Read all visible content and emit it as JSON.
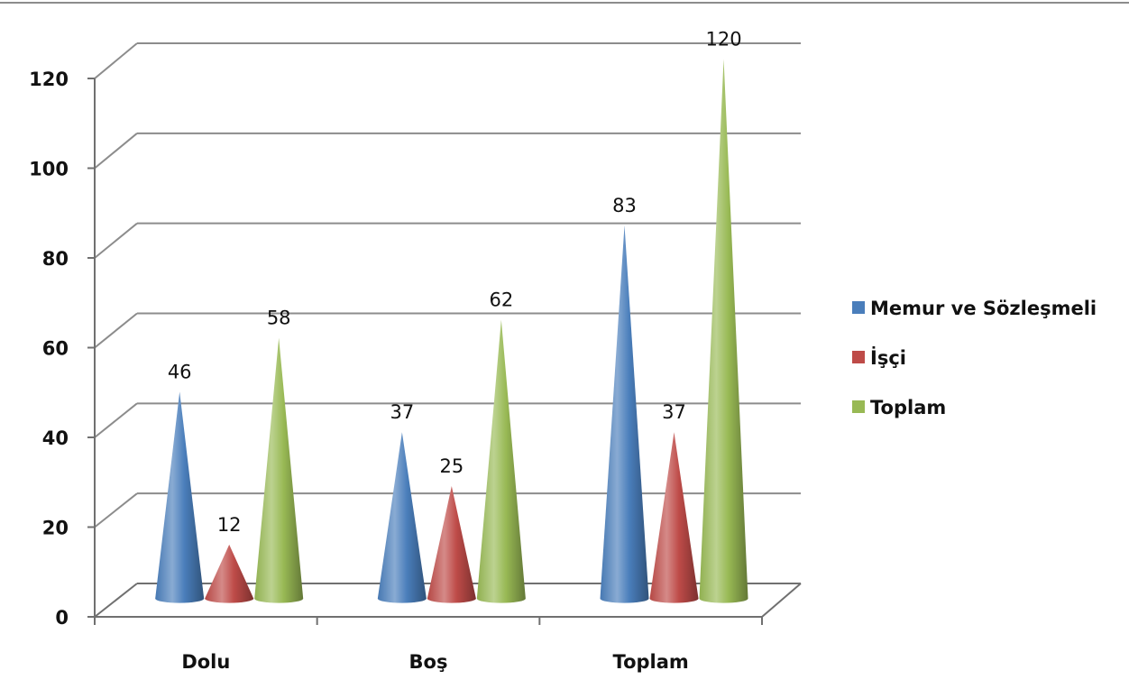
{
  "chart_data": {
    "type": "bar",
    "shape": "cone",
    "categories": [
      "Dolu",
      "Boş",
      "Toplam"
    ],
    "series": [
      {
        "name": "Memur ve Sözleşmeli",
        "color": "#4a7ebb",
        "values": [
          46,
          37,
          83
        ]
      },
      {
        "name": "İşçi",
        "color": "#be4b48",
        "values": [
          12,
          25,
          37
        ]
      },
      {
        "name": "Toplam",
        "color": "#98b954",
        "values": [
          58,
          62,
          120
        ]
      }
    ],
    "ylim": [
      0,
      120
    ],
    "yticks": [
      0,
      20,
      40,
      60,
      80,
      100,
      120
    ],
    "grid": true,
    "legend": "right",
    "data_labels": true
  }
}
